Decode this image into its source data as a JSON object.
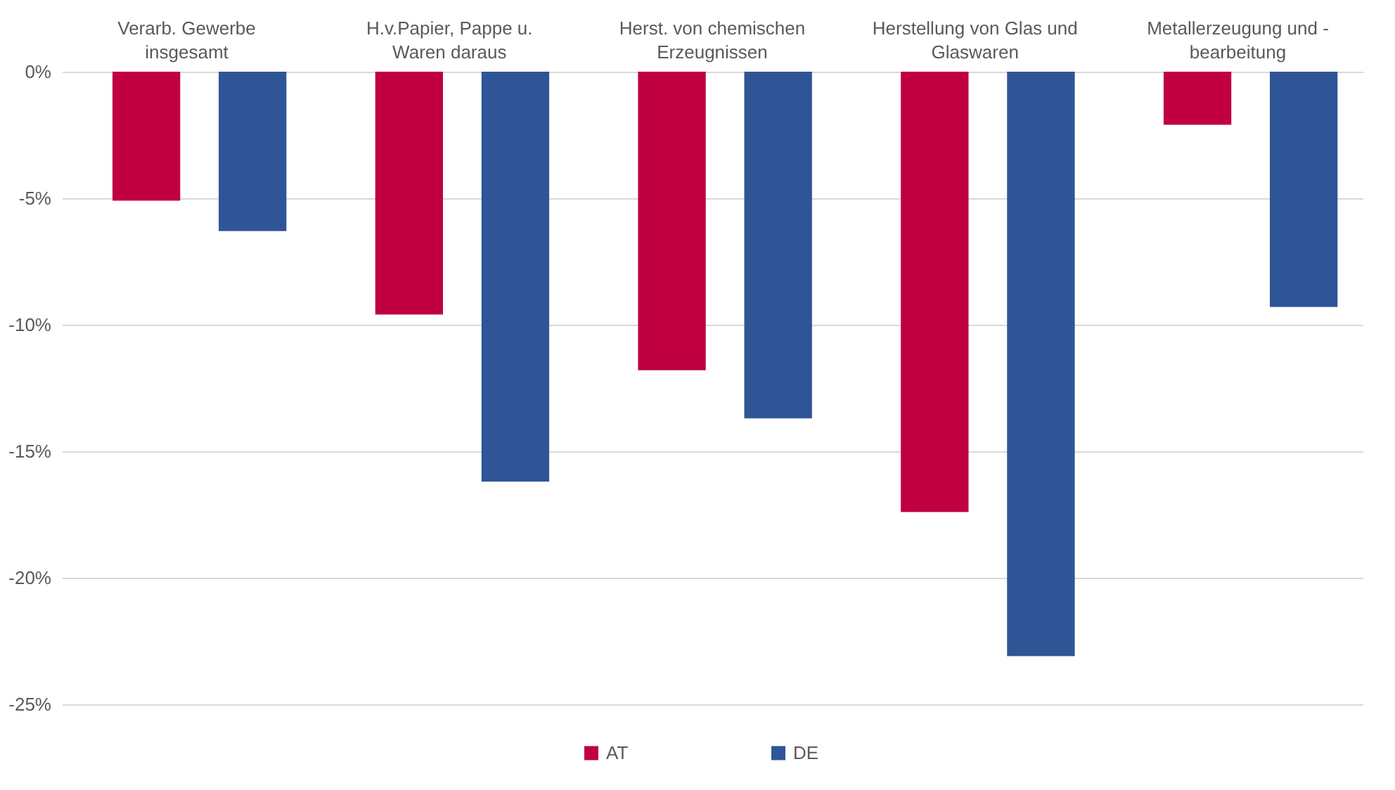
{
  "chart_data": {
    "type": "bar",
    "categories": [
      "Verarb. Gewerbe\ninsgesamt",
      "H.v.Papier, Pappe u.\nWaren daraus",
      "Herst. von chemischen\nErzeugnissen",
      "Herstellung von Glas und\nGlaswaren",
      "Metallerzeugung und -\nbearbeitung"
    ],
    "series": [
      {
        "name": "AT",
        "color": "#c00040",
        "values": [
          -5.1,
          -9.6,
          -11.8,
          -17.4,
          -2.1
        ]
      },
      {
        "name": "DE",
        "color": "#2f5597",
        "values": [
          -6.3,
          -16.2,
          -13.7,
          -23.1,
          -9.3
        ]
      }
    ],
    "ylim": [
      -25,
      0
    ],
    "yticks": [
      {
        "value": 0,
        "label": "0%"
      },
      {
        "value": -5,
        "label": "-5%"
      },
      {
        "value": -10,
        "label": "-10%"
      },
      {
        "value": -15,
        "label": "-15%"
      },
      {
        "value": -20,
        "label": "-20%"
      },
      {
        "value": -25,
        "label": "-25%"
      }
    ],
    "grid": "y",
    "legend": "bottom"
  }
}
